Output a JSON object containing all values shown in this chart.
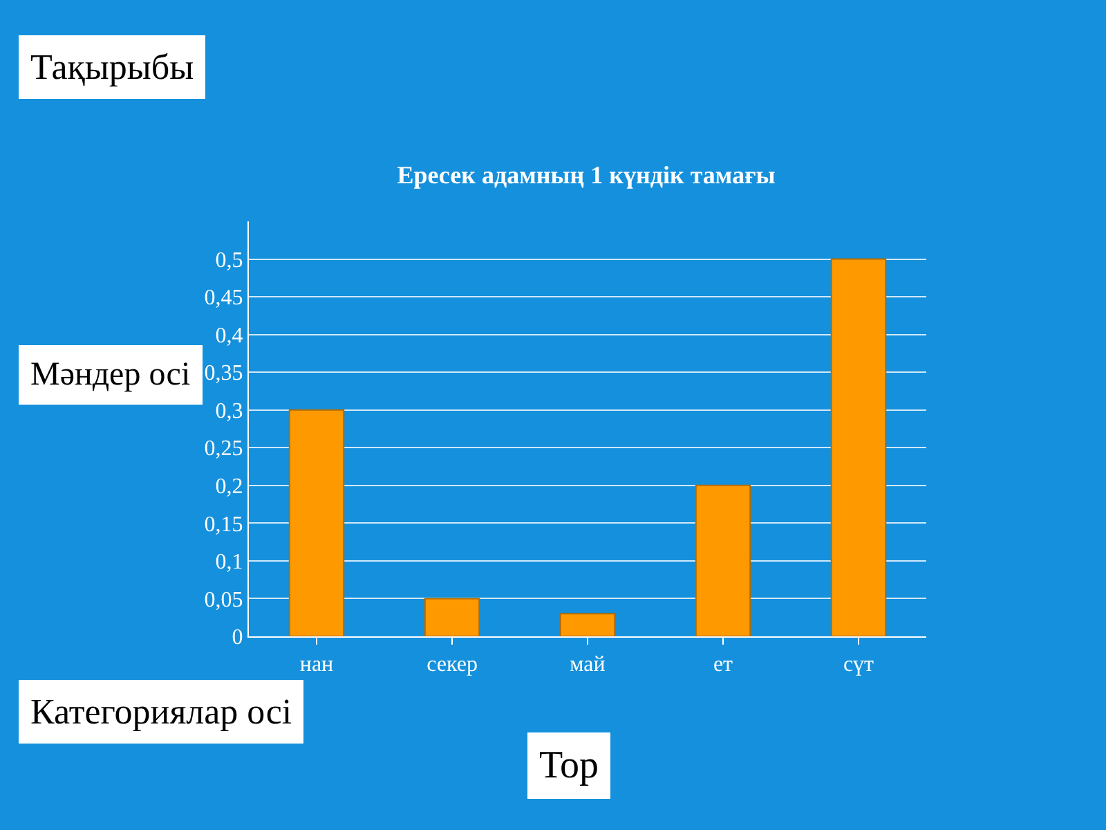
{
  "chart_data": {
    "type": "bar",
    "title": "Ересек адамның 1 күндік тамағы",
    "categories": [
      "нан",
      "секер",
      "май",
      "ет",
      "сүт"
    ],
    "values": [
      0.3,
      0.05,
      0.03,
      0.2,
      0.5
    ],
    "color": "#ff9900",
    "ylim": [
      0,
      0.55
    ],
    "yticks": [
      0,
      {
        "value": 0.05,
        "label": "0,05"
      },
      {
        "value": 0.1,
        "label": "0,1"
      },
      {
        "value": 0.15,
        "label": "0,15"
      },
      {
        "value": 0.2,
        "label": "0,2"
      },
      {
        "value": 0.25,
        "label": "0,25"
      },
      {
        "value": 0.3,
        "label": "0,3"
      },
      {
        "value": 0.35,
        "label": "0,35"
      },
      {
        "value": 0.4,
        "label": "0,4"
      },
      {
        "value": 0.45,
        "label": "0,45"
      },
      {
        "value": 0.5,
        "label": "0,5"
      }
    ],
    "grid": "y",
    "annotations": [
      "Тақырыбы",
      "Мәндер осі",
      "Категориялар осі",
      "Тор"
    ]
  }
}
